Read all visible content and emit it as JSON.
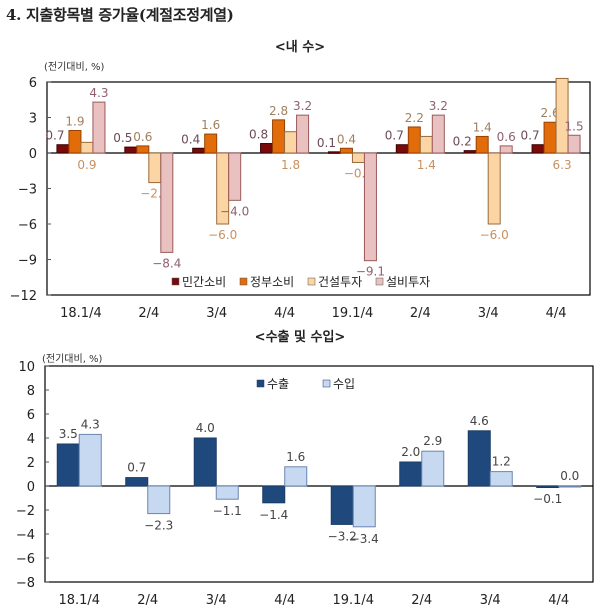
{
  "heading": "4. 지출항목별 증가율(계절조정계열)",
  "chart_data": [
    {
      "type": "bar",
      "title": "<내   수>",
      "unit_label": "(전기대비, %)",
      "xlabel": "",
      "ylabel": "",
      "categories": [
        "18.1/4",
        "2/4",
        "3/4",
        "4/4",
        "19.1/4",
        "2/4",
        "3/4",
        "4/4"
      ],
      "ylim": [
        -12,
        6
      ],
      "yticks": [
        6,
        3,
        0,
        -3,
        -6,
        -9,
        -12
      ],
      "ytick_labels": [
        "6",
        "3",
        "0",
        "−3",
        "−6",
        "−9",
        "−12"
      ],
      "grid": false,
      "legend_position": "bottom-center-inside",
      "series": [
        {
          "name": "민간소비",
          "color": "#7a0a0a",
          "label_color": "#6b4a5a",
          "values": [
            0.7,
            0.5,
            0.4,
            0.8,
            0.1,
            0.7,
            0.2,
            0.7
          ]
        },
        {
          "name": "정부소비",
          "color": "#e36c0a",
          "label_color": "#a08060",
          "values": [
            1.9,
            0.6,
            1.6,
            2.8,
            0.4,
            2.2,
            1.4,
            2.6
          ]
        },
        {
          "name": "건설투자",
          "color": "#fcd5a4",
          "label_color": "#c89060",
          "values": [
            0.9,
            -2.5,
            -6.0,
            1.8,
            -0.8,
            1.4,
            -6.0,
            6.3
          ]
        },
        {
          "name": "설비투자",
          "color": "#eac1c1",
          "label_color": "#906070",
          "values": [
            4.3,
            -8.4,
            -4.0,
            3.2,
            -9.1,
            3.2,
            0.6,
            1.5
          ]
        }
      ]
    },
    {
      "type": "bar",
      "title": "<수출 및 수입>",
      "unit_label": "(전기대비, %)",
      "xlabel": "",
      "ylabel": "",
      "categories": [
        "18.1/4",
        "2/4",
        "3/4",
        "4/4",
        "19.1/4",
        "2/4",
        "3/4",
        "4/4"
      ],
      "ylim": [
        -8,
        10
      ],
      "yticks": [
        10,
        8,
        6,
        4,
        2,
        0,
        -2,
        -4,
        -6,
        -8
      ],
      "ytick_labels": [
        "10",
        "8",
        "6",
        "4",
        "2",
        "0",
        "−2",
        "−4",
        "−6",
        "−8"
      ],
      "grid": false,
      "legend_position": "top-center-inside",
      "series": [
        {
          "name": "수출",
          "color": "#1f497d",
          "label_color": "#444444",
          "values": [
            3.5,
            0.7,
            4.0,
            -1.4,
            -3.2,
            2.0,
            4.6,
            -0.1
          ]
        },
        {
          "name": "수입",
          "color": "#c6d9f1",
          "label_color": "#444444",
          "values": [
            4.3,
            -2.3,
            -1.1,
            1.6,
            -3.4,
            2.9,
            1.2,
            0.0
          ]
        }
      ]
    }
  ]
}
